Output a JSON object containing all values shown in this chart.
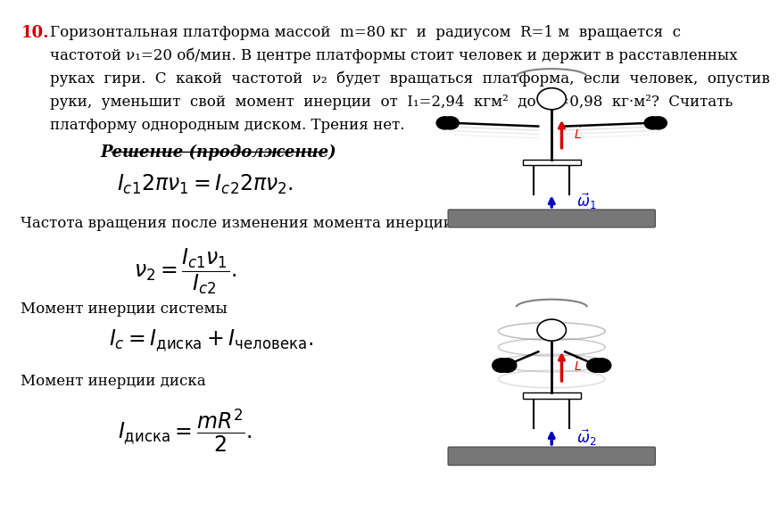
{
  "bg_color": "#ffffff",
  "title_number": "10.",
  "title_color": "#cc0000",
  "problem_lines": [
    "Горизонтальная платформа массой  m=80 кг  и  радиусом  R=1 м  вращается  с",
    "частотой ν₁=20 об/мин. В центре платформы стоит человек и держит в расставленных",
    "руках  гири.  С  какой  частотой  ν₂  будет  вращаться  платформа,  если  человек,  опустив",
    "руки,  уменьшит  свой  момент  инерции  от  I₁=2,94  кгм²  до  I₂=0,98  кг·м²?  Считать",
    "платформу однородным диском. Трения нет."
  ],
  "solution_header": "Решение (продолжение)",
  "text1": "Частота вращения после изменения момента инерции",
  "text2": "Момент инерции системы",
  "text3": "Момент инерции диска",
  "arrow_red": "#dd0000",
  "arrow_blue": "#0000cc",
  "platform_color": "#777777"
}
